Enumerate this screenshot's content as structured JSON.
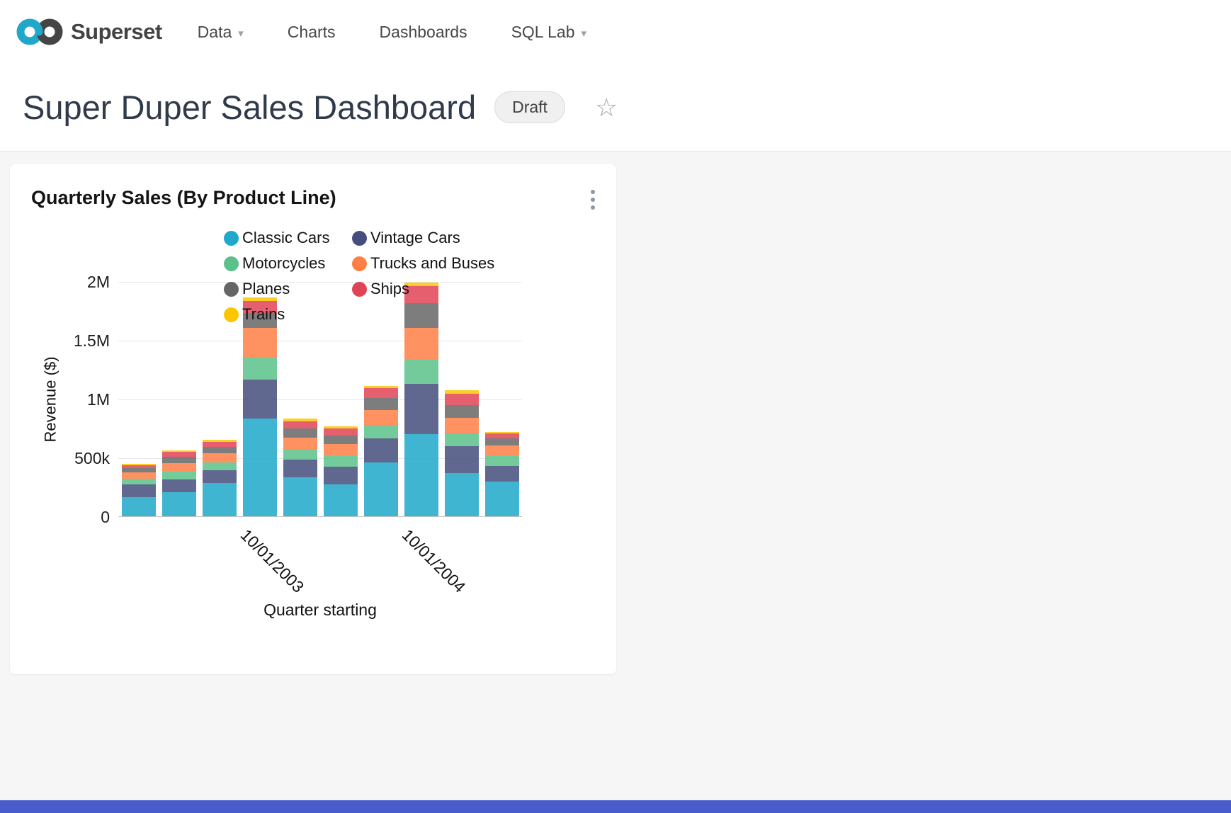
{
  "nav": {
    "brand": "Superset",
    "items": [
      {
        "label": "Data",
        "has_menu": true
      },
      {
        "label": "Charts",
        "has_menu": false
      },
      {
        "label": "Dashboards",
        "has_menu": false
      },
      {
        "label": "SQL Lab",
        "has_menu": true
      }
    ]
  },
  "icons": {
    "caret_down": "▾",
    "star_outline": "☆"
  },
  "header": {
    "title": "Super Duper Sales Dashboard",
    "status_badge": "Draft"
  },
  "card": {
    "title": "Quarterly Sales (By Product Line)"
  },
  "colors": {
    "brand_teal": "#20A7C9",
    "background": "#f6f6f6",
    "bottom_bar": "#4a5ccc"
  },
  "chart_data": {
    "type": "bar",
    "stacked": true,
    "title": "Quarterly Sales (By Product Line)",
    "xlabel": "Quarter starting",
    "ylabel": "Revenue ($)",
    "ylim": [
      0,
      2000000
    ],
    "y_ticks": [
      "0",
      "500k",
      "1M",
      "1.5M",
      "2M"
    ],
    "grid": true,
    "legend_position": "top",
    "bar_count": 10,
    "x_tick_labels": [
      {
        "label": "10/01/2003",
        "bar_index": 3
      },
      {
        "label": "10/01/2004",
        "bar_index": 7
      }
    ],
    "series": [
      {
        "name": "Classic Cars",
        "color": "#1FA8C9",
        "values": [
          165000,
          205000,
          285000,
          830000,
          330000,
          270000,
          455000,
          700000,
          370000,
          295000
        ]
      },
      {
        "name": "Vintage Cars",
        "color": "#454E7C",
        "values": [
          105000,
          110000,
          105000,
          330000,
          155000,
          150000,
          205000,
          425000,
          225000,
          130000
        ]
      },
      {
        "name": "Motorcycles",
        "color": "#5AC189",
        "values": [
          48000,
          65000,
          70000,
          190000,
          90000,
          100000,
          120000,
          210000,
          110000,
          90000
        ]
      },
      {
        "name": "Trucks and Buses",
        "color": "#FF7F44",
        "values": [
          55000,
          72000,
          75000,
          250000,
          95000,
          92000,
          125000,
          270000,
          130000,
          85000
        ]
      },
      {
        "name": "Planes",
        "color": "#666666",
        "values": [
          35000,
          55000,
          58000,
          130000,
          80000,
          78000,
          100000,
          210000,
          110000,
          60000
        ]
      },
      {
        "name": "Ships",
        "color": "#E04355",
        "values": [
          28000,
          40000,
          42000,
          100000,
          60000,
          56000,
          85000,
          145000,
          100000,
          48000
        ]
      },
      {
        "name": "Trains",
        "color": "#FCC700",
        "values": [
          9000,
          15000,
          14000,
          30000,
          23000,
          20000,
          20000,
          30000,
          25000,
          11000
        ]
      }
    ]
  }
}
